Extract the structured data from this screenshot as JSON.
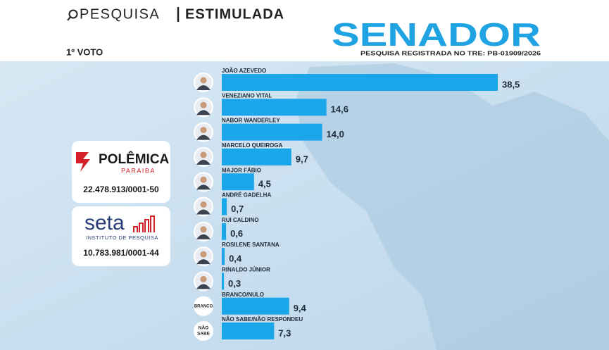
{
  "header": {
    "left": "PESQUISA",
    "right": "ESTIMULADA",
    "office": "SENADOR",
    "registration": "PESQUISA REGISTRADA NO TRE: PB-01909/2026",
    "round": "1º VOTO"
  },
  "logos": {
    "polemica": {
      "name": "POLÊMICA",
      "region": "PARAIBA",
      "cnpj": "22.478.913/0001-50"
    },
    "seta": {
      "name": "seta",
      "tagline": "INSTITUTO DE PESQUISA",
      "cnpj": "10.783.981/0001-44"
    }
  },
  "avatars": {
    "branco": "BRANCO",
    "nao_sabe_1": "NÃO",
    "nao_sabe_2": "SABE"
  },
  "chart_data": {
    "type": "bar",
    "orientation": "horizontal",
    "color": "#1ca6ea",
    "categories": [
      "JOÃO AZEVEDO",
      "VENEZIANO VITAL",
      "NABOR WANDERLEY",
      "MARCELO QUEIROGA",
      "MAJOR FÁBIO",
      "ANDRÉ GADELHA",
      "RUI CALDINO",
      "ROSILENE SANTANA",
      "RINALDO JÚNIOR",
      "BRANCO/NULO",
      "NÃO SABE/NÃO RESPONDEU"
    ],
    "values": [
      38.5,
      14.6,
      14.0,
      9.7,
      4.5,
      0.7,
      0.6,
      0.4,
      0.3,
      9.4,
      7.3
    ],
    "value_labels": [
      "38,5",
      "14,6",
      "14,0",
      "9,7",
      "4,5",
      "0,7",
      "0,6",
      "0,4",
      "0,3",
      "9,4",
      "7,3"
    ]
  }
}
